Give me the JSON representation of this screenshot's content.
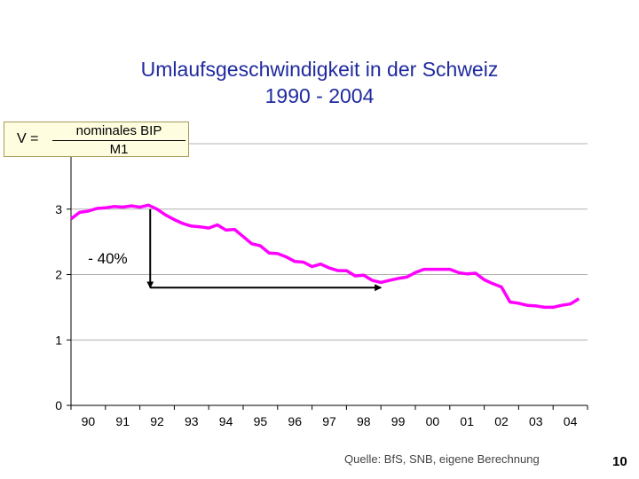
{
  "page_number": "10",
  "source": "Quelle: BfS, SNB, eigene Berechnung",
  "formula": {
    "lhs": "V =",
    "numerator": "nominales BIP",
    "denominator": "M1"
  },
  "chart_data": {
    "type": "line",
    "title": [
      "Umlaufsgeschwindigkeit in der Schweiz",
      "1990 - 2004"
    ],
    "xlabel": "",
    "ylabel": "",
    "categories": [
      "90",
      "91",
      "92",
      "93",
      "94",
      "95",
      "96",
      "97",
      "98",
      "99",
      "00",
      "01",
      "02",
      "03",
      "04"
    ],
    "x_range": [
      1990,
      2005
    ],
    "ylim": [
      0,
      4
    ],
    "yticks": [
      "0",
      "1",
      "2",
      "3"
    ],
    "grid": true,
    "line_color": "#ff00ff",
    "series": [
      {
        "x": [
          1990.0,
          1990.25,
          1990.5,
          1990.75,
          1991.0,
          1991.25,
          1991.5,
          1991.75,
          1992.0,
          1992.25,
          1992.5,
          1992.75,
          1993.0,
          1993.25,
          1993.5,
          1993.75,
          1994.0,
          1994.25,
          1994.5,
          1994.75,
          1995.0,
          1995.25,
          1995.5,
          1995.75,
          1996.0,
          1996.25,
          1996.5,
          1996.75,
          1997.0,
          1997.25,
          1997.5,
          1997.75,
          1998.0,
          1998.25,
          1998.5,
          1998.75,
          1999.0,
          1999.25,
          1999.5,
          1999.75,
          2000.0,
          2000.25,
          2000.5,
          2000.75,
          2001.0,
          2001.25,
          2001.5,
          2001.75,
          2002.0,
          2002.25,
          2002.5,
          2002.75,
          2003.0,
          2003.25,
          2003.5,
          2003.75,
          2004.0,
          2004.25,
          2004.5,
          2004.75
        ],
        "values": [
          2.85,
          2.95,
          2.97,
          3.01,
          3.02,
          3.04,
          3.03,
          3.05,
          3.03,
          3.06,
          3.0,
          2.91,
          2.84,
          2.78,
          2.74,
          2.73,
          2.71,
          2.76,
          2.68,
          2.69,
          2.58,
          2.47,
          2.44,
          2.33,
          2.32,
          2.27,
          2.2,
          2.19,
          2.12,
          2.16,
          2.1,
          2.06,
          2.06,
          1.98,
          1.99,
          1.91,
          1.88,
          1.91,
          1.94,
          1.96,
          2.03,
          2.08,
          2.08,
          2.08,
          2.08,
          2.03,
          2.01,
          2.02,
          1.92,
          1.86,
          1.81,
          1.58,
          1.56,
          1.53,
          1.52,
          1.5,
          1.5,
          1.53,
          1.55,
          1.63
        ]
      }
    ],
    "annotation": {
      "label": "- 40%",
      "vertical_arrow": {
        "x": 1992.3,
        "from": 3.0,
        "to": 1.8
      },
      "horizontal_arrow": {
        "y": 1.8,
        "from": 1992.3,
        "to": 1999.0
      }
    }
  }
}
